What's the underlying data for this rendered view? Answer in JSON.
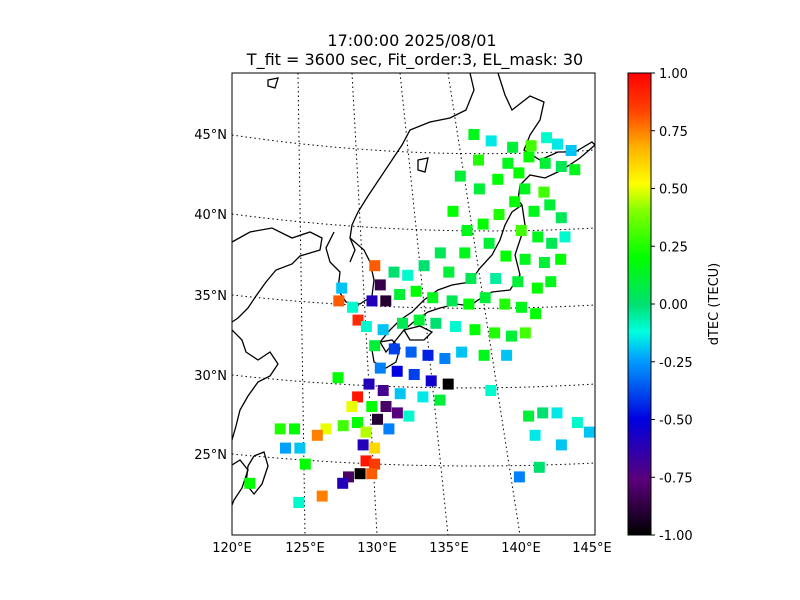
{
  "chart_data": {
    "type": "heatmap",
    "title": "17:00:00 2025/08/01",
    "subtitle": "T_fit = 3600 sec, Fit_order:3, EL_mask: 30",
    "lon_range": [
      120,
      145
    ],
    "lat_range": [
      20,
      49
    ],
    "lon_ticks": [
      "120°E",
      "125°E",
      "130°E",
      "135°E",
      "140°E",
      "145°E"
    ],
    "lat_ticks": [
      "25°N",
      "30°N",
      "35°N",
      "40°N",
      "45°N"
    ],
    "colorbar": {
      "label": "dTEC (TECU)",
      "range": [
        -1.0,
        1.0
      ],
      "ticks": [
        "1.00",
        "0.75",
        "0.50",
        "0.25",
        "0.00",
        "-0.25",
        "-0.50",
        "-0.75",
        "-1.00"
      ],
      "colormap": "nipy_spectral-like"
    },
    "grid": "dotted",
    "points": [
      {
        "lon": 137.3,
        "lat": 45.0,
        "v": 0.15
      },
      {
        "lon": 138.6,
        "lat": 44.6,
        "v": -0.15
      },
      {
        "lon": 140.2,
        "lat": 44.2,
        "v": 0.1
      },
      {
        "lon": 141.6,
        "lat": 44.3,
        "v": 0.3
      },
      {
        "lon": 142.8,
        "lat": 44.8,
        "v": -0.1
      },
      {
        "lon": 143.6,
        "lat": 44.4,
        "v": -0.15
      },
      {
        "lon": 144.6,
        "lat": 44.0,
        "v": -0.2
      },
      {
        "lon": 141.4,
        "lat": 43.6,
        "v": 0.2
      },
      {
        "lon": 142.6,
        "lat": 43.2,
        "v": 0.1
      },
      {
        "lon": 143.8,
        "lat": 43.0,
        "v": 0.05
      },
      {
        "lon": 144.8,
        "lat": 42.8,
        "v": 0.15
      },
      {
        "lon": 140.6,
        "lat": 42.6,
        "v": 0.2
      },
      {
        "lon": 139.8,
        "lat": 43.2,
        "v": 0.15
      },
      {
        "lon": 136.2,
        "lat": 42.4,
        "v": 0.1
      },
      {
        "lon": 137.6,
        "lat": 43.4,
        "v": 0.25
      },
      {
        "lon": 139.0,
        "lat": 42.2,
        "v": 0.2
      },
      {
        "lon": 141.0,
        "lat": 41.6,
        "v": 0.15
      },
      {
        "lon": 142.4,
        "lat": 41.4,
        "v": 0.3
      },
      {
        "lon": 137.6,
        "lat": 41.6,
        "v": 0.1
      },
      {
        "lon": 140.2,
        "lat": 40.8,
        "v": 0.2
      },
      {
        "lon": 141.6,
        "lat": 40.2,
        "v": 0.15
      },
      {
        "lon": 142.8,
        "lat": 40.6,
        "v": 0.1
      },
      {
        "lon": 143.6,
        "lat": 39.8,
        "v": 0.05
      },
      {
        "lon": 139.0,
        "lat": 40.0,
        "v": 0.25
      },
      {
        "lon": 137.8,
        "lat": 39.4,
        "v": 0.2
      },
      {
        "lon": 136.6,
        "lat": 39.0,
        "v": 0.15
      },
      {
        "lon": 135.6,
        "lat": 40.2,
        "v": 0.2
      },
      {
        "lon": 140.6,
        "lat": 39.0,
        "v": 0.3
      },
      {
        "lon": 141.8,
        "lat": 38.6,
        "v": 0.15
      },
      {
        "lon": 142.8,
        "lat": 38.2,
        "v": 0.05
      },
      {
        "lon": 143.8,
        "lat": 38.6,
        "v": -0.1
      },
      {
        "lon": 138.2,
        "lat": 38.2,
        "v": 0.1
      },
      {
        "lon": 136.4,
        "lat": 37.6,
        "v": 0.15
      },
      {
        "lon": 134.6,
        "lat": 37.6,
        "v": 0.05
      },
      {
        "lon": 139.4,
        "lat": 37.4,
        "v": 0.2
      },
      {
        "lon": 140.8,
        "lat": 37.2,
        "v": 0.15
      },
      {
        "lon": 142.2,
        "lat": 37.0,
        "v": 0.1
      },
      {
        "lon": 143.4,
        "lat": 37.2,
        "v": 0.2
      },
      {
        "lon": 133.4,
        "lat": 36.8,
        "v": 0.0
      },
      {
        "lon": 132.2,
        "lat": 36.2,
        "v": -0.1
      },
      {
        "lon": 131.2,
        "lat": 36.4,
        "v": 0.0
      },
      {
        "lon": 135.2,
        "lat": 36.4,
        "v": 0.1
      },
      {
        "lon": 136.8,
        "lat": 36.0,
        "v": 0.05
      },
      {
        "lon": 138.6,
        "lat": 36.0,
        "v": -0.05
      },
      {
        "lon": 140.2,
        "lat": 35.8,
        "v": 0.1
      },
      {
        "lon": 141.6,
        "lat": 35.4,
        "v": 0.2
      },
      {
        "lon": 142.6,
        "lat": 35.8,
        "v": 0.15
      },
      {
        "lon": 129.8,
        "lat": 36.8,
        "v": 0.8
      },
      {
        "lon": 130.2,
        "lat": 35.6,
        "v": -0.85
      },
      {
        "lon": 130.6,
        "lat": 34.6,
        "v": -0.9
      },
      {
        "lon": 129.6,
        "lat": 34.6,
        "v": -0.6
      },
      {
        "lon": 127.4,
        "lat": 35.4,
        "v": -0.2
      },
      {
        "lon": 127.2,
        "lat": 34.6,
        "v": 0.8
      },
      {
        "lon": 128.2,
        "lat": 34.2,
        "v": -0.1
      },
      {
        "lon": 131.6,
        "lat": 35.0,
        "v": 0.1
      },
      {
        "lon": 132.8,
        "lat": 35.2,
        "v": 0.2
      },
      {
        "lon": 134.0,
        "lat": 34.8,
        "v": 0.15
      },
      {
        "lon": 135.4,
        "lat": 34.6,
        "v": 0.05
      },
      {
        "lon": 136.6,
        "lat": 34.4,
        "v": 0.2
      },
      {
        "lon": 137.8,
        "lat": 34.8,
        "v": 0.1
      },
      {
        "lon": 139.2,
        "lat": 34.4,
        "v": 0.25
      },
      {
        "lon": 140.4,
        "lat": 34.2,
        "v": 0.15
      },
      {
        "lon": 141.4,
        "lat": 33.8,
        "v": 0.2
      },
      {
        "lon": 128.6,
        "lat": 33.4,
        "v": 0.9
      },
      {
        "lon": 129.2,
        "lat": 33.0,
        "v": -0.1
      },
      {
        "lon": 130.4,
        "lat": 32.8,
        "v": -0.2
      },
      {
        "lon": 131.8,
        "lat": 33.2,
        "v": 0.05
      },
      {
        "lon": 133.0,
        "lat": 33.4,
        "v": 0.1
      },
      {
        "lon": 134.2,
        "lat": 33.2,
        "v": 0.0
      },
      {
        "lon": 135.6,
        "lat": 33.0,
        "v": -0.1
      },
      {
        "lon": 137.0,
        "lat": 32.8,
        "v": 0.2
      },
      {
        "lon": 138.4,
        "lat": 32.6,
        "v": 0.25
      },
      {
        "lon": 139.6,
        "lat": 32.4,
        "v": 0.1
      },
      {
        "lon": 140.6,
        "lat": 32.6,
        "v": 0.3
      },
      {
        "lon": 129.8,
        "lat": 31.8,
        "v": 0.1
      },
      {
        "lon": 131.2,
        "lat": 31.6,
        "v": -0.4
      },
      {
        "lon": 132.4,
        "lat": 31.4,
        "v": -0.35
      },
      {
        "lon": 133.6,
        "lat": 31.2,
        "v": -0.45
      },
      {
        "lon": 134.8,
        "lat": 31.0,
        "v": -0.3
      },
      {
        "lon": 136.0,
        "lat": 31.4,
        "v": -0.2
      },
      {
        "lon": 137.6,
        "lat": 31.2,
        "v": 0.15
      },
      {
        "lon": 139.2,
        "lat": 31.2,
        "v": -0.2
      },
      {
        "lon": 130.2,
        "lat": 30.4,
        "v": -0.3
      },
      {
        "lon": 131.4,
        "lat": 30.2,
        "v": -0.5
      },
      {
        "lon": 132.6,
        "lat": 30.0,
        "v": -0.4
      },
      {
        "lon": 133.8,
        "lat": 29.6,
        "v": -0.55
      },
      {
        "lon": 135.0,
        "lat": 29.4,
        "v": -1.0
      },
      {
        "lon": 129.4,
        "lat": 29.4,
        "v": -0.6
      },
      {
        "lon": 130.4,
        "lat": 29.0,
        "v": -0.7
      },
      {
        "lon": 131.6,
        "lat": 28.8,
        "v": -0.2
      },
      {
        "lon": 133.2,
        "lat": 28.6,
        "v": -0.15
      },
      {
        "lon": 134.4,
        "lat": 28.4,
        "v": 0.1
      },
      {
        "lon": 138.0,
        "lat": 29.0,
        "v": -0.1
      },
      {
        "lon": 127.2,
        "lat": 29.8,
        "v": 0.2
      },
      {
        "lon": 128.6,
        "lat": 28.6,
        "v": 0.95
      },
      {
        "lon": 128.2,
        "lat": 28.0,
        "v": 0.5
      },
      {
        "lon": 129.6,
        "lat": 28.0,
        "v": 0.2
      },
      {
        "lon": 130.6,
        "lat": 28.0,
        "v": -0.8
      },
      {
        "lon": 131.4,
        "lat": 27.6,
        "v": -0.75
      },
      {
        "lon": 132.2,
        "lat": 27.4,
        "v": -0.1
      },
      {
        "lon": 130.0,
        "lat": 27.2,
        "v": -0.9
      },
      {
        "lon": 128.6,
        "lat": 27.0,
        "v": 0.2
      },
      {
        "lon": 127.6,
        "lat": 26.8,
        "v": 0.3
      },
      {
        "lon": 126.4,
        "lat": 26.6,
        "v": 0.5
      },
      {
        "lon": 129.2,
        "lat": 26.4,
        "v": 0.45
      },
      {
        "lon": 130.8,
        "lat": 26.6,
        "v": -0.3
      },
      {
        "lon": 125.8,
        "lat": 26.2,
        "v": 0.75
      },
      {
        "lon": 124.2,
        "lat": 26.6,
        "v": 0.2
      },
      {
        "lon": 123.2,
        "lat": 26.6,
        "v": 0.25
      },
      {
        "lon": 124.6,
        "lat": 25.4,
        "v": -0.2
      },
      {
        "lon": 123.6,
        "lat": 25.4,
        "v": -0.25
      },
      {
        "lon": 129.0,
        "lat": 25.6,
        "v": -0.6
      },
      {
        "lon": 129.8,
        "lat": 25.4,
        "v": 0.6
      },
      {
        "lon": 129.2,
        "lat": 24.6,
        "v": 0.95
      },
      {
        "lon": 129.8,
        "lat": 24.4,
        "v": 0.85
      },
      {
        "lon": 128.8,
        "lat": 23.8,
        "v": -1.0
      },
      {
        "lon": 129.6,
        "lat": 23.8,
        "v": 0.8
      },
      {
        "lon": 128.0,
        "lat": 23.6,
        "v": -0.8
      },
      {
        "lon": 127.6,
        "lat": 23.2,
        "v": -0.6
      },
      {
        "lon": 125.0,
        "lat": 24.4,
        "v": 0.2
      },
      {
        "lon": 126.2,
        "lat": 22.4,
        "v": 0.75
      },
      {
        "lon": 124.6,
        "lat": 22.0,
        "v": -0.1
      },
      {
        "lon": 121.2,
        "lat": 23.2,
        "v": 0.2
      },
      {
        "lon": 140.6,
        "lat": 27.4,
        "v": 0.1
      },
      {
        "lon": 141.6,
        "lat": 27.6,
        "v": 0.0
      },
      {
        "lon": 142.6,
        "lat": 27.6,
        "v": -0.15
      },
      {
        "lon": 144.0,
        "lat": 27.0,
        "v": -0.1
      },
      {
        "lon": 144.8,
        "lat": 26.4,
        "v": -0.2
      },
      {
        "lon": 141.0,
        "lat": 26.2,
        "v": -0.15
      },
      {
        "lon": 142.8,
        "lat": 25.6,
        "v": -0.2
      },
      {
        "lon": 141.2,
        "lat": 24.2,
        "v": 0.0
      },
      {
        "lon": 139.8,
        "lat": 23.6,
        "v": -0.3
      }
    ]
  }
}
